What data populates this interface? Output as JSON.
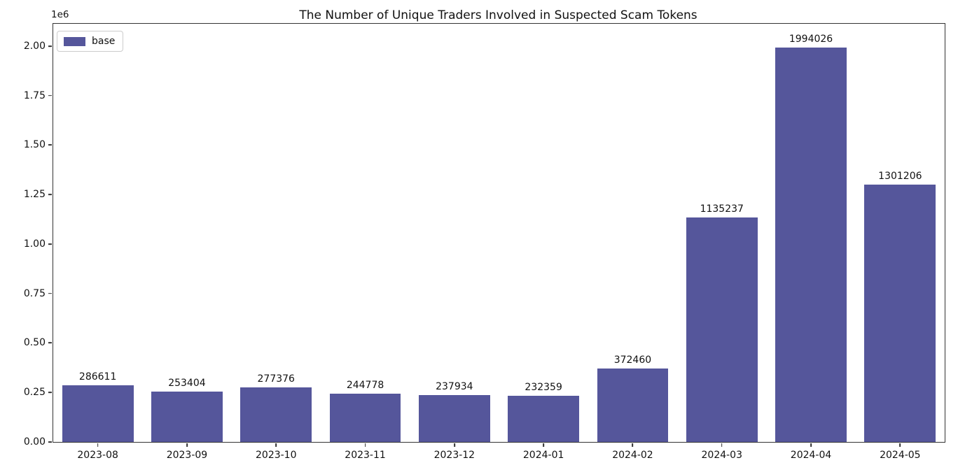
{
  "figure": {
    "title": "The Number of Unique Traders Involved in Suspected Scam Tokens",
    "y_axis_offset_text": "1e6",
    "background_color": "#ffffff",
    "spine_color": "#333333"
  },
  "legend": {
    "label": "base",
    "swatch_color": "#55569B",
    "position": "upper left"
  },
  "chart_data": {
    "type": "bar",
    "title": "The Number of Unique Traders Involved in Suspected Scam Tokens",
    "categories": [
      "2023-08",
      "2023-09",
      "2023-10",
      "2023-11",
      "2023-12",
      "2024-01",
      "2024-02",
      "2024-03",
      "2024-04",
      "2024-05"
    ],
    "series": [
      {
        "name": "base",
        "values": [
          286611,
          253404,
          277376,
          244778,
          237934,
          232359,
          372460,
          1135237,
          1994026,
          1301206
        ],
        "color": "#55569B"
      }
    ],
    "bar_labels": [
      "286611",
      "253404",
      "277376",
      "244778",
      "237934",
      "232359",
      "372460",
      "1135237",
      "1994026",
      "1301206"
    ],
    "xlabel": "",
    "ylabel": "",
    "ylim": [
      0,
      2113000
    ],
    "yticks": [
      0,
      250000,
      500000,
      750000,
      1000000,
      1250000,
      1500000,
      1750000,
      2000000
    ],
    "ytick_labels": [
      "0.00",
      "0.25",
      "0.50",
      "0.75",
      "1.00",
      "1.25",
      "1.50",
      "1.75",
      "2.00"
    ],
    "y_multiplier_text": "1e6",
    "grid": false,
    "bar_width_fraction": 0.8,
    "legend_position": "upper left"
  }
}
